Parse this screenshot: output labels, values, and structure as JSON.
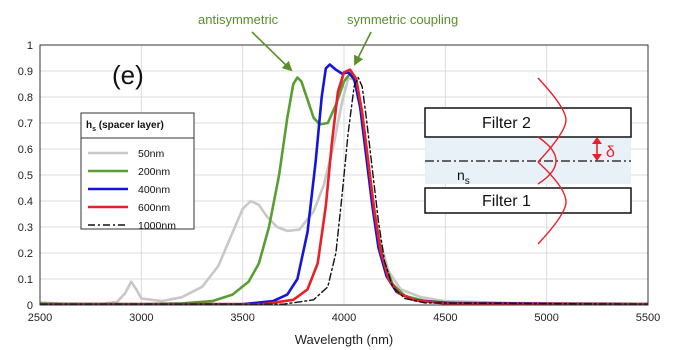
{
  "chart_data": {
    "type": "line",
    "panel_label": "(e)",
    "xlabel": "Wavelength (nm)",
    "ylabel": "",
    "xlim": [
      2500,
      5500
    ],
    "ylim": [
      0,
      1
    ],
    "xticks": [
      2500,
      3000,
      3500,
      4000,
      4500,
      5000,
      5500
    ],
    "yticks": [
      0,
      0.1,
      0.2,
      0.3,
      0.4,
      0.5,
      0.6,
      0.7,
      0.8,
      0.9,
      1
    ],
    "grid": true,
    "legend": {
      "placement": "left-middle",
      "title_main": "h",
      "title_sub": "s",
      "title_rest": " (spacer layer)"
    },
    "annotations": [
      {
        "text": "antisymmetric",
        "color": "#5a8f29",
        "target": [
          3760,
          0.875
        ]
      },
      {
        "text": "symmetric coupling",
        "color": "#5a8f29",
        "target": [
          4020,
          0.895
        ]
      }
    ],
    "inset": {
      "filter_top": "Filter 2",
      "filter_bottom": "Filter 1",
      "index_main": "n",
      "index_sub": "s",
      "gap_symbol": "δ",
      "accent_color": "#e8202a",
      "band_color": "#e8f1f8"
    },
    "series": [
      {
        "name": "50nm",
        "color": "#c8c8c8",
        "width": 2.6,
        "dash": "",
        "points": [
          [
            2500,
            0.01
          ],
          [
            2600,
            0.005
          ],
          [
            2700,
            0.003
          ],
          [
            2800,
            0.004
          ],
          [
            2880,
            0.012
          ],
          [
            2920,
            0.045
          ],
          [
            2950,
            0.09
          ],
          [
            2975,
            0.06
          ],
          [
            3000,
            0.025
          ],
          [
            3100,
            0.015
          ],
          [
            3200,
            0.03
          ],
          [
            3300,
            0.07
          ],
          [
            3380,
            0.15
          ],
          [
            3440,
            0.26
          ],
          [
            3500,
            0.37
          ],
          [
            3540,
            0.4
          ],
          [
            3580,
            0.385
          ],
          [
            3620,
            0.34
          ],
          [
            3670,
            0.3
          ],
          [
            3720,
            0.285
          ],
          [
            3780,
            0.29
          ],
          [
            3850,
            0.36
          ],
          [
            3900,
            0.46
          ],
          [
            3950,
            0.62
          ],
          [
            3990,
            0.78
          ],
          [
            4020,
            0.87
          ],
          [
            4050,
            0.87
          ],
          [
            4080,
            0.78
          ],
          [
            4110,
            0.6
          ],
          [
            4140,
            0.42
          ],
          [
            4180,
            0.24
          ],
          [
            4220,
            0.13
          ],
          [
            4280,
            0.06
          ],
          [
            4380,
            0.03
          ],
          [
            4500,
            0.015
          ],
          [
            4800,
            0.008
          ],
          [
            5500,
            0.005
          ]
        ]
      },
      {
        "name": "200nm",
        "color": "#5a9e32",
        "width": 2.6,
        "dash": "",
        "points": [
          [
            2500,
            0.005
          ],
          [
            3000,
            0.003
          ],
          [
            3200,
            0.006
          ],
          [
            3350,
            0.015
          ],
          [
            3450,
            0.04
          ],
          [
            3530,
            0.09
          ],
          [
            3580,
            0.16
          ],
          [
            3630,
            0.3
          ],
          [
            3680,
            0.5
          ],
          [
            3720,
            0.72
          ],
          [
            3750,
            0.85
          ],
          [
            3770,
            0.875
          ],
          [
            3790,
            0.86
          ],
          [
            3820,
            0.79
          ],
          [
            3850,
            0.72
          ],
          [
            3880,
            0.695
          ],
          [
            3920,
            0.7
          ],
          [
            3960,
            0.77
          ],
          [
            4000,
            0.86
          ],
          [
            4030,
            0.89
          ],
          [
            4060,
            0.85
          ],
          [
            4090,
            0.72
          ],
          [
            4120,
            0.52
          ],
          [
            4150,
            0.34
          ],
          [
            4190,
            0.18
          ],
          [
            4240,
            0.08
          ],
          [
            4300,
            0.035
          ],
          [
            4400,
            0.015
          ],
          [
            4600,
            0.005
          ],
          [
            5500,
            0.003
          ]
        ]
      },
      {
        "name": "400nm",
        "color": "#1515d8",
        "width": 2.6,
        "dash": "",
        "points": [
          [
            2500,
            0.003
          ],
          [
            3500,
            0.003
          ],
          [
            3650,
            0.015
          ],
          [
            3720,
            0.04
          ],
          [
            3770,
            0.1
          ],
          [
            3820,
            0.28
          ],
          [
            3860,
            0.55
          ],
          [
            3890,
            0.8
          ],
          [
            3910,
            0.91
          ],
          [
            3930,
            0.925
          ],
          [
            3960,
            0.905
          ],
          [
            3990,
            0.89
          ],
          [
            4020,
            0.895
          ],
          [
            4050,
            0.87
          ],
          [
            4080,
            0.76
          ],
          [
            4110,
            0.57
          ],
          [
            4140,
            0.38
          ],
          [
            4170,
            0.22
          ],
          [
            4210,
            0.11
          ],
          [
            4260,
            0.05
          ],
          [
            4340,
            0.02
          ],
          [
            4500,
            0.008
          ],
          [
            5500,
            0.003
          ]
        ]
      },
      {
        "name": "600nm",
        "color": "#e8202a",
        "width": 2.6,
        "dash": "",
        "points": [
          [
            2500,
            0.003
          ],
          [
            3600,
            0.003
          ],
          [
            3750,
            0.02
          ],
          [
            3820,
            0.06
          ],
          [
            3870,
            0.16
          ],
          [
            3910,
            0.38
          ],
          [
            3940,
            0.62
          ],
          [
            3970,
            0.82
          ],
          [
            4000,
            0.895
          ],
          [
            4030,
            0.905
          ],
          [
            4060,
            0.87
          ],
          [
            4090,
            0.74
          ],
          [
            4120,
            0.55
          ],
          [
            4150,
            0.36
          ],
          [
            4180,
            0.21
          ],
          [
            4220,
            0.1
          ],
          [
            4270,
            0.045
          ],
          [
            4350,
            0.018
          ],
          [
            4500,
            0.006
          ],
          [
            5500,
            0.003
          ]
        ]
      },
      {
        "name": "1000nm",
        "color": "#111111",
        "width": 1.4,
        "dash": "7,3,2,3",
        "points": [
          [
            2500,
            0.003
          ],
          [
            3700,
            0.003
          ],
          [
            3850,
            0.02
          ],
          [
            3920,
            0.07
          ],
          [
            3960,
            0.2
          ],
          [
            3990,
            0.42
          ],
          [
            4020,
            0.66
          ],
          [
            4050,
            0.84
          ],
          [
            4070,
            0.875
          ],
          [
            4090,
            0.84
          ],
          [
            4110,
            0.72
          ],
          [
            4140,
            0.52
          ],
          [
            4170,
            0.32
          ],
          [
            4200,
            0.17
          ],
          [
            4240,
            0.07
          ],
          [
            4300,
            0.025
          ],
          [
            4400,
            0.008
          ],
          [
            5500,
            0.003
          ]
        ]
      }
    ]
  }
}
